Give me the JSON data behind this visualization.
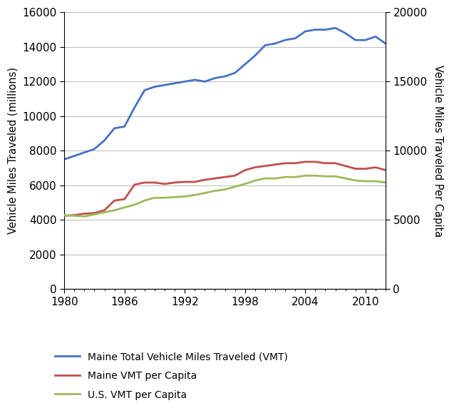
{
  "years": [
    1980,
    1981,
    1982,
    1983,
    1984,
    1985,
    1986,
    1987,
    1988,
    1989,
    1990,
    1991,
    1992,
    1993,
    1994,
    1995,
    1996,
    1997,
    1998,
    1999,
    2000,
    2001,
    2002,
    2003,
    2004,
    2005,
    2006,
    2007,
    2008,
    2009,
    2010,
    2011,
    2012
  ],
  "maine_total_vmt": [
    7500,
    7700,
    7900,
    8100,
    8600,
    9300,
    9400,
    10500,
    11500,
    11700,
    11800,
    11900,
    12000,
    12100,
    12000,
    12200,
    12300,
    12500,
    13000,
    13500,
    14100,
    14200,
    14400,
    14500,
    14900,
    15000,
    15000,
    15100,
    14800,
    14400,
    14400,
    14600,
    14200
  ],
  "maine_vmt_per_capita": [
    5300,
    5350,
    5450,
    5500,
    5700,
    6400,
    6500,
    7550,
    7700,
    7700,
    7600,
    7700,
    7750,
    7750,
    7900,
    8000,
    8100,
    8200,
    8600,
    8800,
    8900,
    9000,
    9100,
    9100,
    9200,
    9200,
    9100,
    9100,
    8900,
    8700,
    8700,
    8800,
    8600
  ],
  "us_vmt_per_capita": [
    5350,
    5300,
    5250,
    5400,
    5550,
    5700,
    5900,
    6100,
    6400,
    6600,
    6600,
    6650,
    6700,
    6800,
    6950,
    7100,
    7200,
    7400,
    7600,
    7850,
    8000,
    8000,
    8100,
    8100,
    8200,
    8200,
    8150,
    8150,
    8000,
    7850,
    7800,
    7800,
    7700
  ],
  "blue_color": "#4472C4",
  "red_color": "#C0504D",
  "green_color": "#9BBB59",
  "left_ylim": [
    0,
    16000
  ],
  "right_ylim": [
    0,
    20000
  ],
  "left_yticks": [
    0,
    2000,
    4000,
    6000,
    8000,
    10000,
    12000,
    14000,
    16000
  ],
  "right_yticks": [
    0,
    5000,
    10000,
    15000,
    20000
  ],
  "xlim": [
    1980,
    2012
  ],
  "xticks": [
    1980,
    1986,
    1992,
    1998,
    2004,
    2010
  ],
  "ylabel_left": "Vehicle Miles Traveled (millions)",
  "ylabel_right": "Vehicle Miles Traveled Per Capita",
  "legend_labels": [
    "Maine Total Vehicle Miles Traveled (VMT)",
    "Maine VMT per Capita",
    "U.S. VMT per Capita"
  ],
  "background_color": "#FFFFFF",
  "grid_color": "#C0C0C0"
}
